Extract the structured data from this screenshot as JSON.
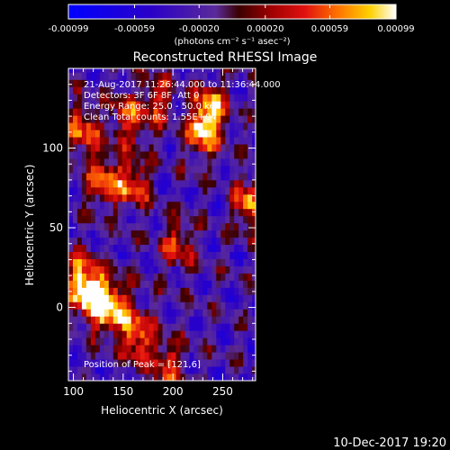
{
  "chart_data": {
    "type": "heatmap",
    "title": "Reconstructed RHESSI Image",
    "xlabel": "Heliocentric X (arcsec)",
    "ylabel": "Heliocentric Y (arcsec)",
    "xlim": [
      95,
      283
    ],
    "ylim": [
      -46,
      150
    ],
    "x_ticks": [
      100,
      150,
      200,
      250
    ],
    "y_ticks": [
      0,
      50,
      100
    ],
    "grid": false,
    "colorbar": {
      "range": [
        -0.00099,
        0.00099
      ],
      "tick_values": [
        -0.00099,
        -0.00059,
        -0.0002,
        0.0002,
        0.00059,
        0.00099
      ],
      "tick_labels": [
        "-0.00099",
        "-0.00059",
        "-0.00020",
        "0.00020",
        "0.00059",
        "0.00099"
      ],
      "unit_label": "(photons cm⁻² s⁻¹ asec⁻²)",
      "stops": [
        {
          "v": 0.0,
          "color": "#0000ff"
        },
        {
          "v": 0.25,
          "color": "#2a00c8"
        },
        {
          "v": 0.45,
          "color": "#5a2a9a"
        },
        {
          "v": 0.52,
          "color": "#3a0000"
        },
        {
          "v": 0.62,
          "color": "#a00000"
        },
        {
          "v": 0.72,
          "color": "#e01010"
        },
        {
          "v": 0.82,
          "color": "#ff7000"
        },
        {
          "v": 0.92,
          "color": "#ffd000"
        },
        {
          "v": 1.0,
          "color": "#ffffff"
        }
      ]
    },
    "annotations": [
      "21-Aug-2017 11:26:44.000 to 11:36:44.000",
      "Detectors: 3F 6F 8F, Att 0",
      "Energy Range: 25.0 - 50.0 keV",
      "Clean     Total counts: 1.55E+04"
    ],
    "peak_label": "Position of Peak = [121,6]",
    "sources": [
      {
        "x": 121,
        "y": 6,
        "peak": 1.0
      },
      {
        "x": 141,
        "y": 0,
        "peak": 0.9
      },
      {
        "x": 108,
        "y": 18,
        "peak": 0.8
      },
      {
        "x": 165,
        "y": -18,
        "peak": 0.75
      },
      {
        "x": 130,
        "y": 80,
        "peak": 0.75
      },
      {
        "x": 160,
        "y": 78,
        "peak": 0.7
      },
      {
        "x": 110,
        "y": 112,
        "peak": 0.65
      },
      {
        "x": 155,
        "y": 118,
        "peak": 0.6
      },
      {
        "x": 230,
        "y": 110,
        "peak": 0.8
      },
      {
        "x": 238,
        "y": 125,
        "peak": 0.7
      },
      {
        "x": 278,
        "y": 65,
        "peak": 0.75
      },
      {
        "x": 195,
        "y": -35,
        "peak": 0.6
      },
      {
        "x": 205,
        "y": 40,
        "peak": 0.55
      },
      {
        "x": 185,
        "y": 130,
        "peak": 0.5
      }
    ]
  },
  "footer": {
    "date": "10-Dec-2017 19:20"
  }
}
